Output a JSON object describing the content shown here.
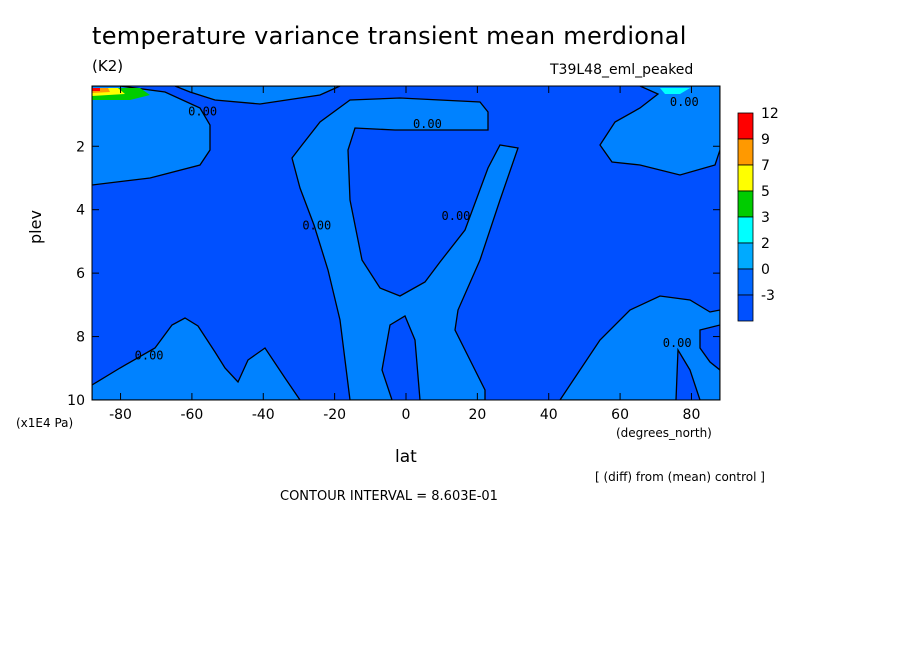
{
  "chart_data": {
    "type": "contour",
    "title": "temperature variance transient mean merdional",
    "units": "(K2)",
    "run_label": "T39L48_eml_peaked",
    "xlabel": "lat",
    "x_unit": "(degrees_north)",
    "ylabel": "plev",
    "y_unit": "(x1E4 Pa)",
    "x_ticks": [
      "-80",
      "-60",
      "-40",
      "-20",
      "0",
      "20",
      "40",
      "60",
      "80"
    ],
    "x_tick_values": [
      -80,
      -60,
      -40,
      -20,
      0,
      20,
      40,
      60,
      80
    ],
    "y_ticks": [
      "2",
      "4",
      "6",
      "8",
      "10"
    ],
    "y_tick_values": [
      2,
      4,
      6,
      8,
      10
    ],
    "xlim": [
      -88,
      88
    ],
    "ylim": [
      10,
      0.1
    ],
    "y_inverted": true,
    "contour_labels": [
      {
        "text": "0.00",
        "lat": -57,
        "plev": 0.9
      },
      {
        "text": "0.00",
        "lat": 6,
        "plev": 1.3
      },
      {
        "text": "0.00",
        "lat": 78,
        "plev": 0.6
      },
      {
        "text": "0.00",
        "lat": -25,
        "plev": 4.5
      },
      {
        "text": "0.00",
        "lat": 14,
        "plev": 4.2
      },
      {
        "text": "0.00",
        "lat": -72,
        "plev": 8.6
      },
      {
        "text": "0.00",
        "lat": 76,
        "plev": 8.2
      }
    ],
    "colorbar": {
      "labels": [
        "12",
        "9",
        "7",
        "5",
        "3",
        "2",
        "0",
        "-3"
      ],
      "colors": [
        "#ff0000",
        "#ff9900",
        "#ffff00",
        "#00cc00",
        "#00ffff",
        "#00aaff",
        "#0066ff",
        "#0050ff"
      ]
    },
    "contour_interval_text": "CONTOUR INTERVAL = 8.603E-01",
    "diff_note": "[ (diff) from (mean) control ]",
    "background_color": "#0050ff",
    "fill_color_level_0": "#0082ff"
  }
}
